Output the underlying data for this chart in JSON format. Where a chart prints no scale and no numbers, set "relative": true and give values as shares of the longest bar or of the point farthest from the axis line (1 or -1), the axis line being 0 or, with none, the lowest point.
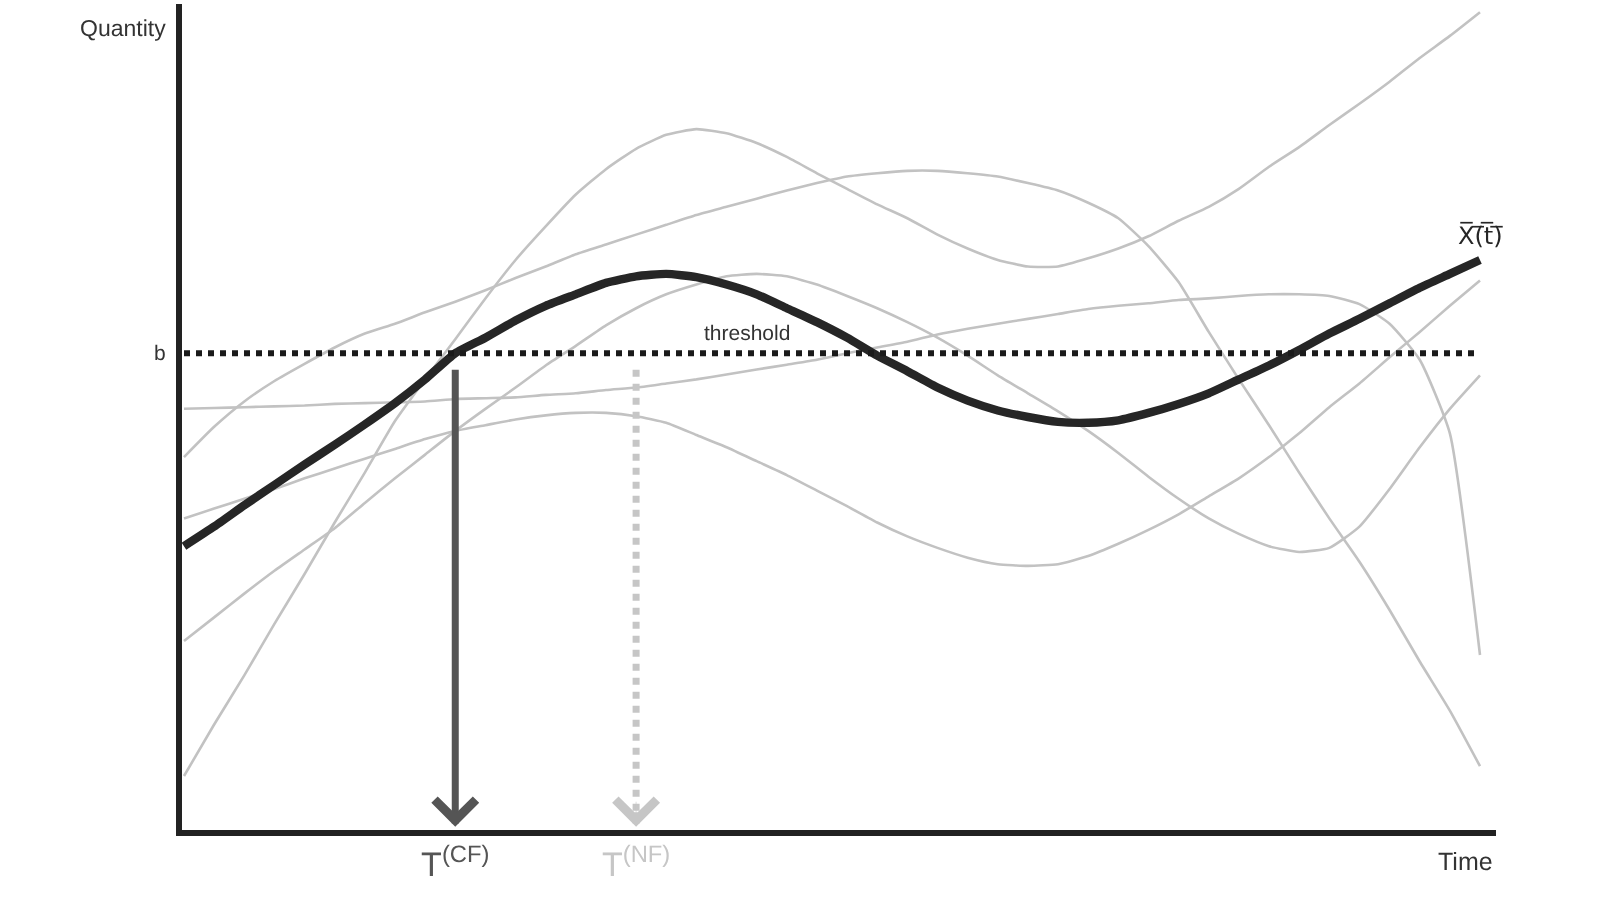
{
  "chart_data": {
    "type": "line",
    "relative": true,
    "xlabel": "Time",
    "ylabel": "Quantity",
    "tick_labels": "x",
    "categories": [
      null,
      null,
      null,
      null,
      null,
      null,
      null,
      null,
      null,
      "T$^{(CF)}$",
      null,
      null,
      null,
      null,
      null,
      "T$^{(NF)}$",
      null,
      null,
      null,
      null,
      null,
      null,
      null,
      null,
      null,
      null,
      null,
      null,
      null,
      null,
      null,
      null,
      null,
      null,
      null,
      null,
      null,
      null,
      null,
      null,
      null,
      null,
      null,
      null
    ],
    "series": [
      {
        "color": "#c2c2c2",
        "values": [
          0.066,
          0.129,
          0.189,
          0.252,
          0.313,
          0.376,
          0.437,
          0.5,
          0.551,
          0.6,
          0.65,
          0.697,
          0.738,
          0.777,
          0.808,
          0.833,
          0.85,
          0.857,
          0.852,
          0.84,
          0.823,
          0.803,
          0.784,
          0.765,
          0.748,
          0.728,
          0.711,
          0.697,
          0.689,
          0.689,
          0.699,
          0.711,
          0.726,
          0.745,
          0.762,
          0.784,
          0.811,
          0.835,
          0.862,
          0.888,
          0.915,
          0.944,
          0.971,
          1.0
        ]
      },
      {
        "color": "#c2c2c2",
        "values": [
          0.456,
          0.493,
          0.524,
          0.549,
          0.57,
          0.59,
          0.607,
          0.619,
          0.633,
          0.646,
          0.66,
          0.675,
          0.689,
          0.704,
          0.716,
          0.728,
          0.74,
          0.752,
          0.762,
          0.772,
          0.782,
          0.791,
          0.799,
          0.803,
          0.806,
          0.806,
          0.803,
          0.799,
          0.791,
          0.782,
          0.767,
          0.748,
          0.714,
          0.67,
          0.609,
          0.551,
          0.495,
          0.437,
          0.381,
          0.328,
          0.269,
          0.206,
          0.146,
          0.078
        ]
      },
      {
        "color": "#c2c2c2",
        "values": [
          0.515,
          0.516,
          0.517,
          0.518,
          0.519,
          0.521,
          0.522,
          0.523,
          0.524,
          0.527,
          0.528,
          0.529,
          0.532,
          0.534,
          0.538,
          0.541,
          0.546,
          0.551,
          0.557,
          0.563,
          0.569,
          0.575,
          0.583,
          0.59,
          0.597,
          0.606,
          0.613,
          0.619,
          0.625,
          0.631,
          0.637,
          0.641,
          0.644,
          0.648,
          0.65,
          0.653,
          0.655,
          0.655,
          0.653,
          0.643,
          0.619,
          0.575,
          0.485,
          0.214
        ]
      },
      {
        "color": "#c2c2c2",
        "values": [
          0.381,
          0.393,
          0.405,
          0.417,
          0.43,
          0.442,
          0.454,
          0.466,
          0.478,
          0.488,
          0.495,
          0.502,
          0.507,
          0.51,
          0.51,
          0.506,
          0.498,
          0.483,
          0.468,
          0.451,
          0.434,
          0.415,
          0.396,
          0.376,
          0.359,
          0.345,
          0.333,
          0.325,
          0.323,
          0.325,
          0.335,
          0.35,
          0.367,
          0.386,
          0.408,
          0.43,
          0.456,
          0.485,
          0.517,
          0.546,
          0.578,
          0.609,
          0.641,
          0.672
        ]
      },
      {
        "color": "#c2c2c2",
        "values": [
          0.231,
          0.26,
          0.289,
          0.317,
          0.343,
          0.369,
          0.4,
          0.43,
          0.459,
          0.488,
          0.515,
          0.541,
          0.568,
          0.592,
          0.617,
          0.638,
          0.655,
          0.667,
          0.677,
          0.68,
          0.677,
          0.667,
          0.653,
          0.638,
          0.621,
          0.602,
          0.58,
          0.556,
          0.534,
          0.512,
          0.488,
          0.461,
          0.432,
          0.405,
          0.381,
          0.362,
          0.347,
          0.34,
          0.345,
          0.371,
          0.417,
          0.468,
          0.515,
          0.556
        ]
      },
      {
        "name": "X̅(̅t̅)̅",
        "color": "#262626",
        "values": [
          0.347,
          0.371,
          0.397,
          0.422,
          0.447,
          0.471,
          0.496,
          0.522,
          0.551,
          0.583,
          0.602,
          0.623,
          0.641,
          0.655,
          0.669,
          0.677,
          0.68,
          0.676,
          0.667,
          0.655,
          0.638,
          0.621,
          0.602,
          0.58,
          0.561,
          0.541,
          0.525,
          0.513,
          0.505,
          0.499,
          0.498,
          0.501,
          0.51,
          0.521,
          0.534,
          0.551,
          0.568,
          0.587,
          0.607,
          0.625,
          0.644,
          0.663,
          0.68,
          0.697
        ]
      }
    ],
    "ref_lines": [
      {
        "axis": "y",
        "value": 0.583,
        "label": "threshold",
        "color": "#1a1a1a",
        "line_style": "dotted"
      },
      {
        "axis": "x",
        "value": "T$^{(CF)}$",
        "color": "#555555",
        "line_style": "solid"
      },
      {
        "axis": "x",
        "value": "T$^{(NF)}$",
        "color": "#c6c6c6",
        "line_style": "dotted"
      }
    ],
    "annotations": [
      "b"
    ]
  }
}
